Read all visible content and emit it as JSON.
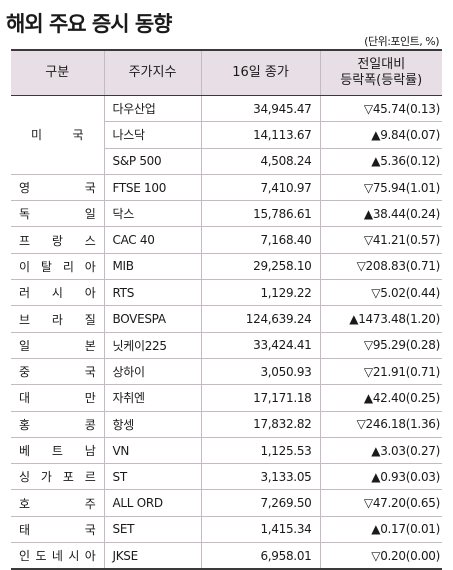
{
  "title": "해외 주요 증시 동향",
  "unit_note": "(단위:포인트, %)",
  "headers": {
    "region": "구분",
    "index": "주가지수",
    "close": "16일 종가",
    "change": "전일대비\n등락폭(등락률)"
  },
  "usa_label": "미 국",
  "usa_rows": [
    {
      "index": "다우산업",
      "close": "34,945.47",
      "change": "▽45.74(0.13)"
    },
    {
      "index": "나스닥",
      "close": "14,113.67",
      "change": "▲9.84(0.07)"
    },
    {
      "index": "S&P 500",
      "close": "4,508.24",
      "change": "▲5.36(0.12)"
    }
  ],
  "rows": [
    {
      "country": "영국",
      "index": "FTSE 100",
      "close": "7,410.97",
      "change": "▽75.94(1.01)"
    },
    {
      "country": "독일",
      "index": "닥스",
      "close": "15,786.61",
      "change": "▲38.44(0.24)"
    },
    {
      "country": "프랑스",
      "index": "CAC 40",
      "close": "7,168.40",
      "change": "▽41.21(0.57)"
    },
    {
      "country": "이탈리아",
      "index": "MIB",
      "close": "29,258.10",
      "change": "▽208.83(0.71)"
    },
    {
      "country": "러시아",
      "index": "RTS",
      "close": "1,129.22",
      "change": "▽5.02(0.44)"
    },
    {
      "country": "브라질",
      "index": "BOVESPA",
      "close": "124,639.24",
      "change": "▲1473.48(1.20)"
    },
    {
      "country": "일본",
      "index": "닛케이225",
      "close": "33,424.41",
      "change": "▽95.29(0.28)"
    },
    {
      "country": "중국",
      "index": "상하이",
      "close": "3,050.93",
      "change": "▽21.91(0.71)"
    },
    {
      "country": "대만",
      "index": "자취엔",
      "close": "17,171.18",
      "change": "▲42.40(0.25)"
    },
    {
      "country": "홍콩",
      "index": "항셍",
      "close": "17,832.82",
      "change": "▽246.18(1.36)"
    },
    {
      "country": "베트남",
      "index": "VN",
      "close": "1,125.53",
      "change": "▲3.03(0.27)"
    },
    {
      "country": "싱가포르",
      "index": "ST",
      "close": "3,133.05",
      "change": "▲0.93(0.03)"
    },
    {
      "country": "호주",
      "index": "ALL ORD",
      "close": "7,269.50",
      "change": "▽47.20(0.65)"
    },
    {
      "country": "태국",
      "index": "SET",
      "close": "1,415.34",
      "change": "▲0.17(0.01)"
    },
    {
      "country": "인도네시아",
      "index": "JKSE",
      "close": "6,958.01",
      "change": "▽0.20(0.00)"
    }
  ]
}
